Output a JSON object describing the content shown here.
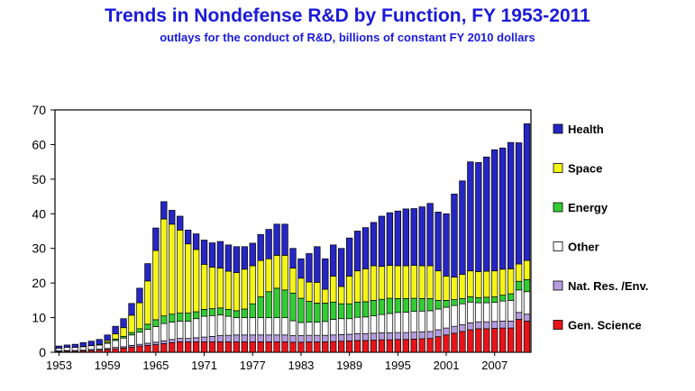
{
  "chart_data": {
    "type": "bar",
    "stacked": true,
    "title": "Trends in Nondefense R&D by Function, FY 1953-2011",
    "subtitle": "outlays for the conduct of R&D, billions of constant FY 2010 dollars",
    "xlabel": "",
    "ylabel": "",
    "ylim": [
      0,
      70
    ],
    "yticks": [
      0,
      10,
      20,
      30,
      40,
      50,
      60,
      70
    ],
    "xtick_labels": [
      "1953",
      "1959",
      "1965",
      "1971",
      "1977",
      "1983",
      "1989",
      "1995",
      "2001",
      "2007"
    ],
    "grid": false,
    "legend_position": "right",
    "legend_order": [
      "Health",
      "Space",
      "Energy",
      "Other",
      "Nat. Res. /Env.",
      "Gen. Science"
    ],
    "categories": [
      "1953",
      "1954",
      "1955",
      "1956",
      "1957",
      "1958",
      "1959",
      "1960",
      "1961",
      "1962",
      "1963",
      "1964",
      "1965",
      "1966",
      "1967",
      "1968",
      "1969",
      "1970",
      "1971",
      "1972",
      "1973",
      "1974",
      "1975",
      "1976",
      "1977",
      "1978",
      "1979",
      "1980",
      "1981",
      "1982",
      "1983",
      "1984",
      "1985",
      "1986",
      "1987",
      "1988",
      "1989",
      "1990",
      "1991",
      "1992",
      "1993",
      "1994",
      "1995",
      "1996",
      "1997",
      "1998",
      "1999",
      "2000",
      "2001",
      "2002",
      "2003",
      "2004",
      "2005",
      "2006",
      "2007",
      "2008",
      "2009",
      "2010",
      "2011"
    ],
    "series": [
      {
        "name": "Gen. Science",
        "color": "#e8141a",
        "values": [
          0.2,
          0.3,
          0.3,
          0.4,
          0.5,
          0.6,
          0.8,
          1.0,
          1.2,
          1.5,
          1.8,
          2.0,
          2.2,
          2.5,
          2.8,
          3.0,
          3.0,
          3.0,
          3.0,
          3.0,
          3.0,
          3.0,
          3.0,
          3.0,
          3.0,
          3.0,
          3.0,
          3.0,
          3.0,
          2.9,
          2.9,
          3.0,
          3.0,
          3.0,
          3.1,
          3.2,
          3.3,
          3.4,
          3.4,
          3.5,
          3.6,
          3.6,
          3.7,
          3.7,
          3.8,
          3.9,
          4.0,
          4.5,
          5.0,
          5.5,
          6.0,
          6.5,
          6.8,
          6.8,
          6.9,
          7.0,
          7.0,
          9.5,
          9.0
        ]
      },
      {
        "name": "Nat. Res. /Env.",
        "color": "#b59ce0",
        "values": [
          0.2,
          0.2,
          0.2,
          0.2,
          0.3,
          0.3,
          0.3,
          0.4,
          0.4,
          0.5,
          0.5,
          0.6,
          0.7,
          0.8,
          0.9,
          1.0,
          1.0,
          1.2,
          1.4,
          1.6,
          1.8,
          1.9,
          2.0,
          2.0,
          2.0,
          2.0,
          2.0,
          2.0,
          2.0,
          1.9,
          1.9,
          1.9,
          1.9,
          1.9,
          1.9,
          1.9,
          1.9,
          2.0,
          2.0,
          2.0,
          2.0,
          2.0,
          2.0,
          2.0,
          2.0,
          2.0,
          2.0,
          2.0,
          2.0,
          2.0,
          2.0,
          2.0,
          2.0,
          2.0,
          2.0,
          2.0,
          2.0,
          2.0,
          2.0
        ]
      },
      {
        "name": "Other",
        "color": "#ffffff",
        "values": [
          0.8,
          0.9,
          0.9,
          1.0,
          1.1,
          1.2,
          1.5,
          2.0,
          2.5,
          3.0,
          3.5,
          4.0,
          4.5,
          5.0,
          5.0,
          5.0,
          5.0,
          5.5,
          6.0,
          6.0,
          6.0,
          5.5,
          5.0,
          5.0,
          5.0,
          5.0,
          5.0,
          5.0,
          5.0,
          4.3,
          3.8,
          3.8,
          3.8,
          4.0,
          4.5,
          4.6,
          4.5,
          4.7,
          4.8,
          5.0,
          5.3,
          5.6,
          5.8,
          5.9,
          6.0,
          6.0,
          6.0,
          6.0,
          6.0,
          6.0,
          6.0,
          6.0,
          5.5,
          5.5,
          5.5,
          5.8,
          6.0,
          6.5,
          6.5
        ]
      },
      {
        "name": "Energy",
        "color": "#32cd32",
        "values": [
          0.0,
          0.0,
          0.0,
          0.1,
          0.1,
          0.2,
          0.3,
          0.4,
          0.5,
          0.7,
          1.0,
          1.5,
          2.0,
          2.2,
          2.3,
          2.3,
          2.3,
          2.0,
          2.0,
          2.0,
          2.0,
          2.0,
          2.0,
          2.5,
          4.0,
          6.0,
          7.5,
          8.5,
          8.0,
          8.0,
          7.0,
          6.0,
          5.5,
          5.3,
          5.0,
          4.3,
          4.3,
          4.4,
          4.4,
          4.5,
          4.4,
          4.4,
          4.0,
          3.9,
          3.8,
          3.6,
          3.5,
          2.5,
          2.0,
          1.7,
          1.5,
          1.5,
          1.5,
          1.6,
          1.6,
          1.7,
          1.9,
          2.5,
          3.5
        ]
      },
      {
        "name": "Space",
        "color": "#f5f518",
        "values": [
          0.0,
          0.0,
          0.0,
          0.0,
          0.0,
          0.0,
          0.5,
          1.5,
          2.5,
          5.0,
          7.5,
          12.5,
          20.0,
          28.0,
          26.0,
          24.0,
          20.0,
          18.0,
          13.0,
          12.0,
          11.5,
          11.0,
          11.0,
          11.5,
          11.0,
          10.5,
          9.5,
          9.5,
          10.0,
          7.2,
          5.8,
          5.6,
          6.0,
          4.0,
          7.5,
          5.0,
          8.0,
          9.0,
          9.5,
          10.0,
          9.5,
          9.5,
          9.5,
          9.5,
          9.5,
          9.5,
          9.5,
          8.5,
          7.0,
          6.5,
          7.0,
          7.5,
          7.5,
          7.5,
          7.5,
          7.5,
          7.2,
          5.0,
          5.5
        ]
      },
      {
        "name": "Health",
        "color": "#2626c4",
        "values": [
          0.6,
          0.7,
          0.9,
          1.1,
          1.2,
          1.4,
          1.6,
          2.2,
          2.6,
          3.4,
          4.2,
          5.0,
          6.5,
          5.0,
          4.0,
          4.0,
          4.0,
          4.5,
          7.0,
          7.0,
          7.7,
          7.6,
          7.5,
          6.5,
          6.5,
          7.5,
          8.5,
          9.0,
          9.0,
          5.7,
          5.6,
          8.2,
          10.3,
          8.8,
          9.0,
          11.0,
          11.0,
          11.5,
          11.9,
          12.5,
          14.5,
          15.2,
          15.8,
          16.4,
          16.4,
          17.0,
          18.0,
          17.0,
          18.0,
          24.0,
          27.0,
          31.5,
          31.5,
          33.0,
          35.0,
          35.0,
          36.5,
          35.0,
          39.5
        ]
      }
    ]
  }
}
